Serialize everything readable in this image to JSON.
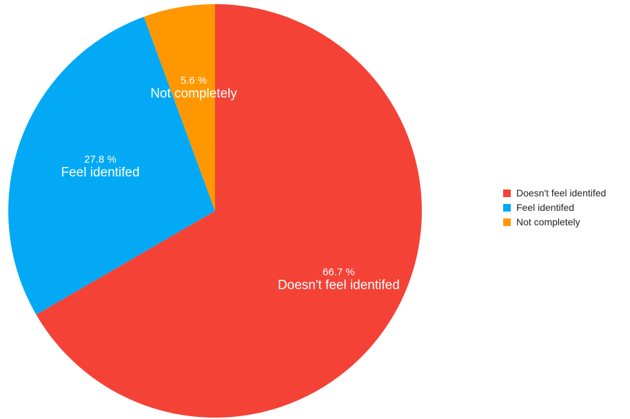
{
  "chart_data": {
    "type": "pie",
    "title": "",
    "start_angle_deg": 0,
    "direction": "clockwise",
    "legend_position": "right",
    "slices": [
      {
        "label": "Doesn't feel identifed",
        "value": 66.7,
        "value_label": "66.7 %",
        "color": "#F44236"
      },
      {
        "label": "Feel identifed",
        "value": 27.8,
        "value_label": "27.8 %",
        "color": "#03A9F4"
      },
      {
        "label": "Not completely",
        "value": 5.6,
        "value_label": "5.6 %",
        "color": "#FF9800"
      }
    ]
  }
}
